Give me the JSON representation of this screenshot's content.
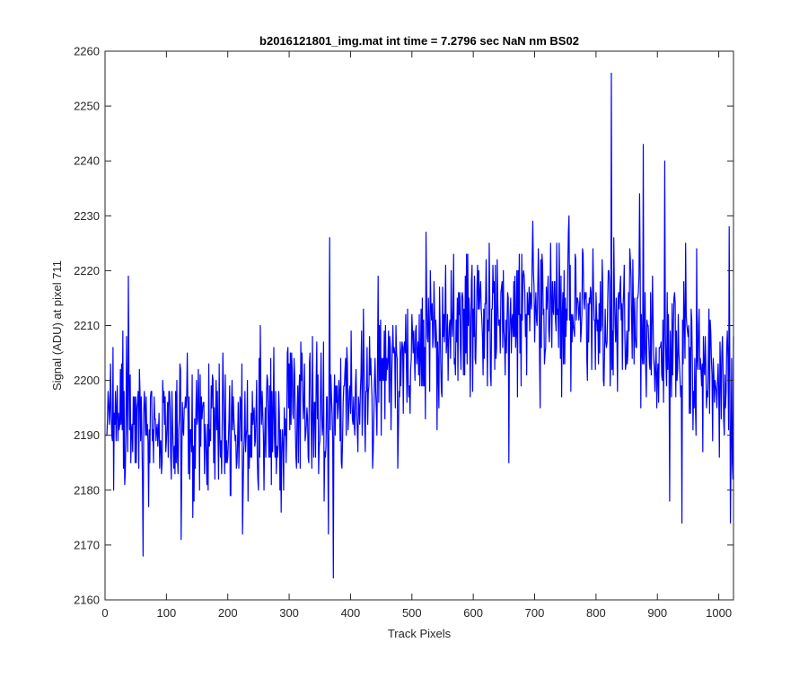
{
  "window": {
    "background": "#ffffff"
  },
  "chart_data": {
    "type": "line",
    "title": "b2016121801_img.mat int time = 7.2796 sec  NaN nm BS02",
    "xlabel": "Track Pixels",
    "ylabel": "Signal (ADU) at pixel 711",
    "xlim": [
      0,
      1024
    ],
    "ylim": [
      2160,
      2260
    ],
    "xticks": [
      0,
      100,
      200,
      300,
      400,
      500,
      600,
      700,
      800,
      900,
      1000
    ],
    "xtick_labels": [
      "0",
      "100",
      "200",
      "300",
      "400",
      "500",
      "600",
      "700",
      "800",
      "900",
      "1000"
    ],
    "yticks": [
      2160,
      2170,
      2180,
      2190,
      2200,
      2210,
      2220,
      2230,
      2240,
      2250,
      2260
    ],
    "ytick_labels": [
      "2160",
      "2170",
      "2180",
      "2190",
      "2200",
      "2210",
      "2220",
      "2230",
      "2240",
      "2250",
      "2260"
    ],
    "grid": false,
    "line_color": "#0000ff",
    "series": [
      {
        "x_start": 1,
        "x_step": 1,
        "point_count": 1024,
        "trend_x": [
          0,
          100,
          200,
          300,
          400,
          500,
          600,
          700,
          800,
          900,
          1000,
          1024
        ],
        "trend_y": [
          2193,
          2191,
          2191,
          2193,
          2196,
          2205,
          2212,
          2213,
          2213,
          2208,
          2201,
          2199
        ],
        "noise_sd": 7,
        "notable_points": [
          {
            "x": 38,
            "y": 2219
          },
          {
            "x": 62,
            "y": 2168
          },
          {
            "x": 372,
            "y": 2164
          },
          {
            "x": 366,
            "y": 2226
          },
          {
            "x": 658,
            "y": 2185
          },
          {
            "x": 825,
            "y": 2256
          },
          {
            "x": 877,
            "y": 2243
          },
          {
            "x": 912,
            "y": 2240
          },
          {
            "x": 920,
            "y": 2178
          },
          {
            "x": 940,
            "y": 2174
          },
          {
            "x": 1017,
            "y": 2228
          },
          {
            "x": 1019,
            "y": 2174
          }
        ]
      }
    ]
  }
}
